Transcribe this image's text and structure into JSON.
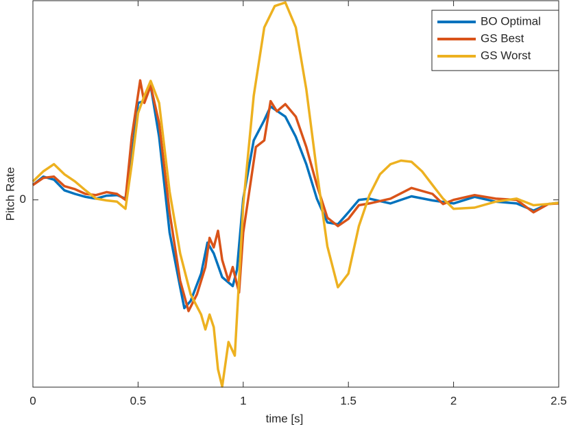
{
  "chart_data": {
    "type": "line",
    "xlabel": "time [s]",
    "ylabel": "Pitch Rate",
    "xlim": [
      0,
      2.5
    ],
    "xticks": [
      0,
      0.5,
      1,
      1.5,
      2,
      2.5
    ],
    "ylim": [
      -3.15,
      3.35
    ],
    "yticks": [
      0
    ],
    "legend": "top-right",
    "series": [
      {
        "name": "BO Optimal",
        "color": "#0072bd",
        "x": [
          0,
          0.05,
          0.1,
          0.15,
          0.2,
          0.25,
          0.3,
          0.35,
          0.4,
          0.44,
          0.47,
          0.5,
          0.53,
          0.56,
          0.6,
          0.65,
          0.7,
          0.72,
          0.75,
          0.8,
          0.83,
          0.86,
          0.9,
          0.95,
          0.97,
          1.0,
          1.05,
          1.1,
          1.13,
          1.2,
          1.25,
          1.3,
          1.35,
          1.4,
          1.45,
          1.5,
          1.55,
          1.6,
          1.7,
          1.8,
          1.9,
          2.0,
          2.1,
          2.2,
          2.3,
          2.38,
          2.45,
          2.5
        ],
        "values": [
          0.25,
          0.39,
          0.34,
          0.16,
          0.1,
          0.05,
          0.02,
          0.07,
          0.08,
          0.02,
          0.71,
          1.63,
          1.66,
          1.92,
          1.06,
          -0.55,
          -1.47,
          -1.82,
          -1.7,
          -1.24,
          -0.72,
          -0.9,
          -1.3,
          -1.45,
          -1.18,
          0.02,
          1.0,
          1.34,
          1.57,
          1.4,
          1.06,
          0.6,
          0.02,
          -0.38,
          -0.41,
          -0.21,
          0,
          0.02,
          -0.06,
          0.06,
          -0.01,
          -0.06,
          0.05,
          -0.03,
          -0.06,
          -0.18,
          -0.07,
          -0.05
        ]
      },
      {
        "name": "GS Best",
        "color": "#d95319",
        "x": [
          0,
          0.05,
          0.1,
          0.15,
          0.2,
          0.25,
          0.3,
          0.35,
          0.4,
          0.44,
          0.47,
          0.51,
          0.53,
          0.56,
          0.6,
          0.65,
          0.7,
          0.74,
          0.78,
          0.82,
          0.84,
          0.86,
          0.88,
          0.9,
          0.93,
          0.95,
          0.98,
          1.0,
          1.06,
          1.1,
          1.13,
          1.16,
          1.2,
          1.25,
          1.3,
          1.35,
          1.4,
          1.45,
          1.5,
          1.55,
          1.6,
          1.7,
          1.8,
          1.9,
          1.95,
          2.0,
          2.1,
          2.2,
          2.3,
          2.38,
          2.45,
          2.5
        ],
        "values": [
          0.25,
          0.37,
          0.39,
          0.23,
          0.18,
          0.1,
          0.08,
          0.13,
          0.1,
          0,
          1.06,
          2.01,
          1.63,
          1.92,
          1.29,
          -0.21,
          -1.36,
          -1.87,
          -1.59,
          -1.13,
          -0.64,
          -0.8,
          -0.52,
          -1.01,
          -1.36,
          -1.13,
          -1.56,
          -0.55,
          0.89,
          1.0,
          1.66,
          1.49,
          1.61,
          1.4,
          0.89,
          0.25,
          -0.3,
          -0.44,
          -0.32,
          -0.09,
          -0.06,
          0.02,
          0.2,
          0.1,
          -0.07,
          0,
          0.08,
          0.02,
          0,
          -0.21,
          -0.07,
          -0.06
        ]
      },
      {
        "name": "GS Worst",
        "color": "#edb120",
        "x": [
          0,
          0.05,
          0.1,
          0.15,
          0.2,
          0.25,
          0.3,
          0.35,
          0.4,
          0.44,
          0.47,
          0.5,
          0.53,
          0.56,
          0.6,
          0.65,
          0.7,
          0.75,
          0.8,
          0.82,
          0.84,
          0.86,
          0.88,
          0.9,
          0.93,
          0.96,
          1.0,
          1.05,
          1.1,
          1.15,
          1.2,
          1.25,
          1.3,
          1.35,
          1.4,
          1.45,
          1.5,
          1.55,
          1.6,
          1.65,
          1.7,
          1.75,
          1.8,
          1.85,
          1.9,
          1.95,
          2.0,
          2.1,
          2.2,
          2.3,
          2.38,
          2.45,
          2.5
        ],
        "values": [
          0.31,
          0.48,
          0.6,
          0.43,
          0.31,
          0.16,
          0.02,
          -0.01,
          -0.03,
          -0.15,
          0.6,
          1.46,
          1.75,
          2.0,
          1.63,
          0.14,
          -0.9,
          -1.59,
          -1.93,
          -2.18,
          -1.93,
          -2.14,
          -2.85,
          -3.14,
          -2.39,
          -2.62,
          -0.09,
          1.75,
          2.9,
          3.26,
          3.32,
          2.9,
          1.86,
          0.48,
          -0.78,
          -1.47,
          -1.24,
          -0.44,
          0.08,
          0.43,
          0.6,
          0.66,
          0.64,
          0.48,
          0.25,
          0.02,
          -0.15,
          -0.13,
          -0.03,
          0.02,
          -0.09,
          -0.07,
          -0.05
        ]
      }
    ]
  }
}
